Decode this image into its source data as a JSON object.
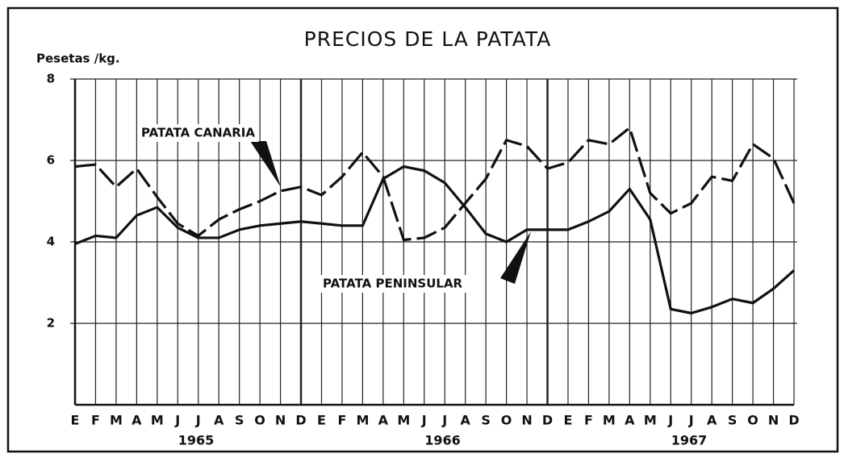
{
  "chart_data": {
    "type": "line",
    "title": "PRECIOS DE LA PATATA",
    "y_label": "Pesetas /kg.",
    "categories": [
      "E",
      "F",
      "M",
      "A",
      "M",
      "J",
      "J",
      "A",
      "S",
      "O",
      "N",
      "D",
      "E",
      "F",
      "M",
      "A",
      "M",
      "J",
      "J",
      "A",
      "S",
      "O",
      "N",
      "D",
      "E",
      "F",
      "M",
      "A",
      "M",
      "J",
      "J",
      "A",
      "S",
      "O",
      "N",
      "D"
    ],
    "year_labels": [
      "1965",
      "1966",
      "1967"
    ],
    "series": [
      {
        "name": "PATATA CANARIA",
        "color": "#111111",
        "dash": true,
        "values": [
          5.85,
          5.9,
          5.35,
          5.8,
          5.1,
          4.45,
          4.15,
          4.55,
          4.8,
          5.0,
          5.25,
          5.35,
          5.15,
          5.6,
          6.2,
          5.6,
          4.05,
          4.1,
          4.35,
          4.95,
          5.55,
          6.5,
          6.35,
          5.8,
          5.95,
          6.5,
          6.4,
          6.8,
          5.2,
          4.7,
          4.95,
          5.6,
          5.5,
          6.4,
          6.05,
          4.95
        ]
      },
      {
        "name": "PATATA PENINSULAR",
        "color": "#111111",
        "dash": false,
        "values": [
          3.95,
          4.15,
          4.1,
          4.65,
          4.85,
          4.35,
          4.1,
          4.1,
          4.3,
          4.4,
          4.45,
          4.5,
          4.45,
          4.4,
          4.4,
          5.55,
          5.85,
          5.75,
          5.45,
          4.85,
          4.2,
          4.0,
          4.3,
          4.3,
          4.3,
          4.5,
          4.75,
          5.3,
          4.55,
          2.35,
          2.25,
          2.4,
          2.6,
          2.5,
          2.85,
          3.3
        ]
      }
    ],
    "ylim": [
      0,
      8
    ],
    "yticks": [
      2,
      4,
      6,
      8
    ],
    "grid": true
  }
}
